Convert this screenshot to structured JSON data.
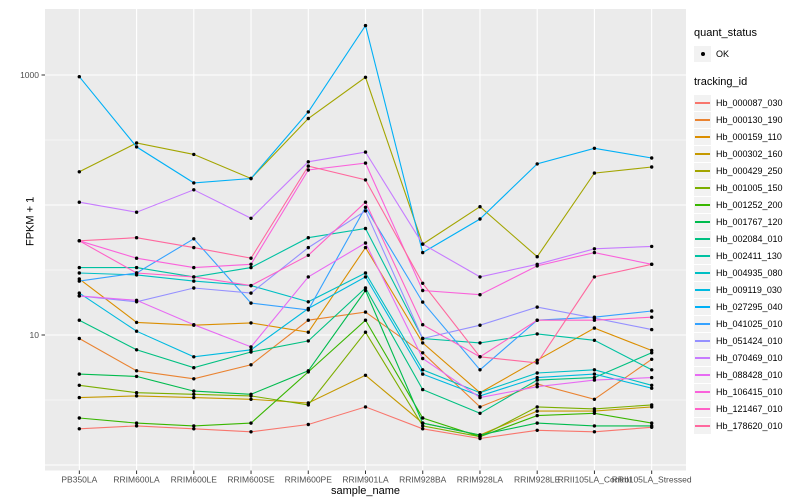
{
  "axes": {
    "y_title": "FPKM + 1",
    "x_title": "sample_name",
    "y_tick_labels": [
      "1000",
      "10"
    ],
    "y_tick_values": [
      1000,
      10
    ]
  },
  "legend": {
    "quant_status": {
      "title": "quant_status",
      "items": [
        {
          "label": "OK",
          "symbol": "point"
        }
      ]
    },
    "tracking_id": {
      "title": "tracking_id"
    }
  },
  "chart_data": {
    "type": "line",
    "title": "",
    "xlabel": "sample_name",
    "ylabel": "FPKM + 1",
    "scale": "log10",
    "grid": true,
    "legend_position": "right",
    "panel_bg": "#EBEBEB",
    "grid_color": "#FFFFFF",
    "marker_color": "#000000",
    "tick_label_color": "#4D4D4D",
    "y_ticks": [
      10,
      1000
    ],
    "y_minor_ticks": [
      3.162,
      31.62,
      316.2
    ],
    "ylim": [
      1,
      3200
    ],
    "x_categories": [
      "PB350LA",
      "RRIM600LA",
      "RRIM600LE",
      "RRIM600SE",
      "RRIM600PE",
      "RRIM901LA",
      "RRIM928BA",
      "RRIM928LA",
      "RRIM928LE",
      "RRII105LA_Control",
      "RRII105LA_Stressed"
    ],
    "series": [
      {
        "name": "Hb_000087_030",
        "color": "#F8766D",
        "values": [
          1.9,
          2.0,
          1.9,
          1.8,
          2.05,
          2.8,
          1.9,
          1.6,
          1.85,
          1.8,
          1.95
        ]
      },
      {
        "name": "Hb_000130_190",
        "color": "#EA8331",
        "values": [
          9.4,
          5.3,
          4.6,
          5.9,
          13,
          15,
          7.3,
          2.8,
          4.2,
          3.2,
          6.5
        ]
      },
      {
        "name": "Hb_000159_110",
        "color": "#DB8E00",
        "values": [
          27,
          12.5,
          11.9,
          12.4,
          10.5,
          47,
          8.7,
          3.6,
          6.4,
          11.3,
          7.6
        ]
      },
      {
        "name": "Hb_000302_160",
        "color": "#C59900",
        "values": [
          3.3,
          3.4,
          3.3,
          3.2,
          3.0,
          4.9,
          2.1,
          1.7,
          2.6,
          2.6,
          2.8
        ]
      },
      {
        "name": "Hb_000429_250",
        "color": "#A3A500",
        "values": [
          180,
          300,
          245,
          160,
          463,
          960,
          50,
          97,
          40,
          176,
          196
        ]
      },
      {
        "name": "Hb_001005_150",
        "color": "#7CAE00",
        "values": [
          4.1,
          3.6,
          3.5,
          3.4,
          2.9,
          10.5,
          2.0,
          1.65,
          2.8,
          2.7,
          2.9
        ]
      },
      {
        "name": "Hb_001252_200",
        "color": "#39B600",
        "values": [
          2.3,
          2.1,
          2.0,
          2.1,
          5.2,
          13,
          2.3,
          1.65,
          2.4,
          2.5,
          2.1
        ]
      },
      {
        "name": "Hb_001767_120",
        "color": "#00BB4E",
        "values": [
          5.0,
          4.8,
          3.7,
          3.5,
          5.3,
          22,
          2.1,
          1.7,
          2.1,
          2.0,
          2.0
        ]
      },
      {
        "name": "Hb_002084_010",
        "color": "#00C081",
        "values": [
          13,
          7.7,
          5.6,
          7.4,
          9.0,
          23,
          3.8,
          2.5,
          4.5,
          4.7,
          7.3
        ]
      },
      {
        "name": "Hb_002411_130",
        "color": "#00C1A2",
        "values": [
          33,
          33,
          28,
          33,
          56,
          66,
          9.4,
          8.7,
          10.2,
          9.1,
          5.4
        ]
      },
      {
        "name": "Hb_004935_080",
        "color": "#00BFC4",
        "values": [
          30,
          29,
          26,
          24,
          18,
          30,
          5.4,
          3.6,
          5.1,
          5.4,
          4.1
        ]
      },
      {
        "name": "Hb_009119_030",
        "color": "#00BAE0",
        "values": [
          21,
          10.7,
          6.8,
          7.7,
          16,
          28,
          5.0,
          3.4,
          4.7,
          5.0,
          3.9
        ]
      },
      {
        "name": "Hb_027295_040",
        "color": "#00B0F6",
        "values": [
          970,
          280,
          148,
          160,
          520,
          2400,
          43,
          78,
          207,
          273,
          230
        ]
      },
      {
        "name": "Hb_041025_010",
        "color": "#35A2FF",
        "values": [
          26,
          30,
          55,
          17.6,
          15.6,
          96,
          17.9,
          5.4,
          13,
          13.7,
          15.3
        ]
      },
      {
        "name": "Hb_051424_010",
        "color": "#9590FF",
        "values": [
          20,
          18,
          23,
          21,
          47,
          90,
          9.4,
          11.9,
          16.4,
          13.5,
          11.0
        ]
      },
      {
        "name": "Hb_070469_010",
        "color": "#C77CFF",
        "values": [
          105,
          88,
          131,
          79,
          215,
          255,
          50,
          28,
          35,
          46,
          48
        ]
      },
      {
        "name": "Hb_088428_010",
        "color": "#E76BF3",
        "values": [
          20,
          18.5,
          12,
          8.1,
          28,
          51,
          6.6,
          3.3,
          4.0,
          4.5,
          4.7
        ]
      },
      {
        "name": "Hb_106415_010",
        "color": "#FA62DB",
        "values": [
          53,
          39,
          33,
          35,
          186,
          210,
          22,
          20.4,
          34,
          43,
          35
        ]
      },
      {
        "name": "Hb_121467_010",
        "color": "#FF61C7",
        "values": [
          53,
          30,
          28,
          24,
          41,
          105,
          12,
          6.8,
          13,
          13,
          13.7
        ]
      },
      {
        "name": "Hb_178620_010",
        "color": "#FF689E",
        "values": [
          53,
          56,
          47,
          39,
          199,
          156,
          25,
          6.8,
          6.1,
          28,
          35
        ]
      }
    ]
  }
}
